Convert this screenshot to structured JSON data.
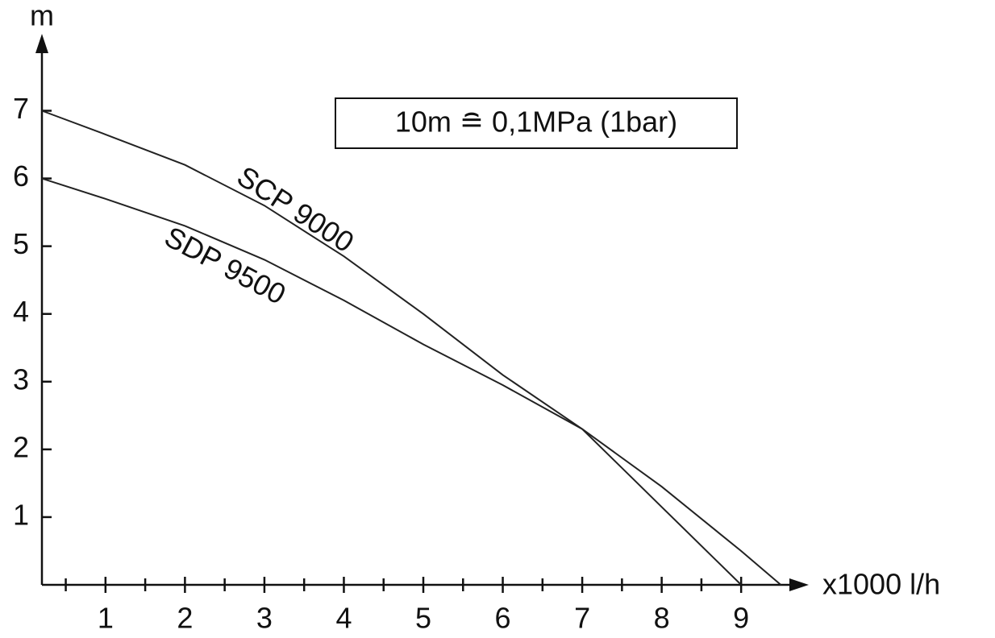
{
  "chart_data": {
    "type": "line",
    "x_label": "x1000 l/h",
    "y_label": "m",
    "annotation": "10m ≘ 0,1MPa (1bar)",
    "series": [
      {
        "name": "SCP 9000",
        "color": "#222222",
        "x": [
          0.2,
          1,
          2,
          3,
          4,
          5,
          6,
          7,
          8,
          9
        ],
        "values": [
          7.0,
          6.65,
          6.2,
          5.6,
          4.85,
          4.0,
          3.1,
          2.3,
          1.15,
          0
        ]
      },
      {
        "name": "SDP 9500",
        "color": "#222222",
        "x": [
          0.2,
          1,
          2,
          3,
          4,
          5,
          6,
          7,
          8,
          9,
          9.5
        ],
        "values": [
          6.0,
          5.7,
          5.3,
          4.8,
          4.2,
          3.55,
          2.95,
          2.3,
          1.45,
          0.5,
          0
        ]
      }
    ],
    "xlim": [
      0.2,
      9.8
    ],
    "ylim": [
      0,
      8.1
    ],
    "xticks": [
      1,
      2,
      3,
      4,
      5,
      6,
      7,
      8,
      9
    ],
    "xminorticks": [
      0.5,
      1.5,
      2.5,
      3.5,
      4.5,
      5.5,
      6.5,
      7.5,
      8.5
    ],
    "yticks": [
      1,
      2,
      3,
      4,
      5,
      6,
      7
    ],
    "grid": false
  }
}
